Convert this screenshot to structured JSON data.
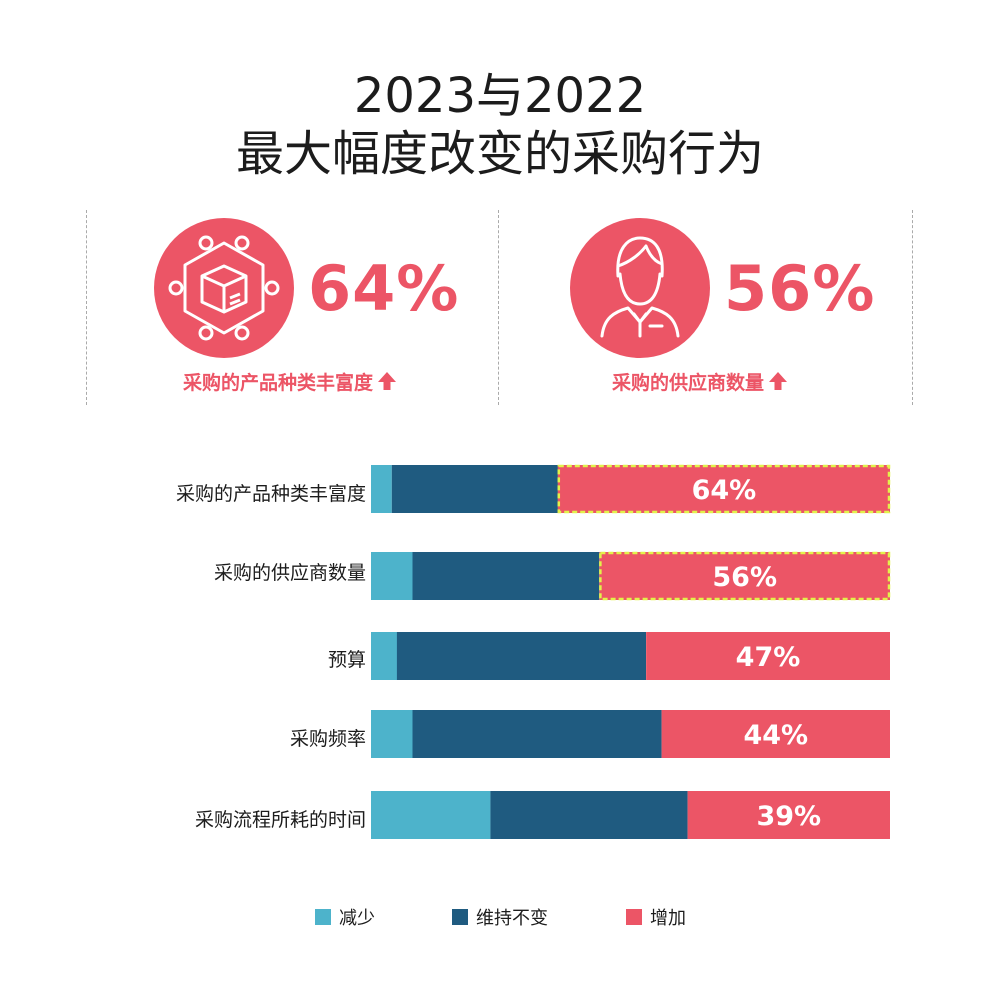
{
  "header": {
    "title_line1": "2023与2022",
    "title_line2": "最大幅度改变的采购行为"
  },
  "highlights": [
    {
      "icon": "product-network-icon",
      "value": "64%",
      "caption": "采购的产品种类丰富度"
    },
    {
      "icon": "supplier-person-icon",
      "value": "56%",
      "caption": "采购的供应商数量"
    }
  ],
  "colors": {
    "decrease": "#4db3cb",
    "unchanged": "#1f5b80",
    "increase": "#ec5566",
    "highlight_border": "#e2f24a"
  },
  "chart_data": {
    "type": "bar",
    "orientation": "horizontal",
    "stacked": true,
    "title": "2023与2022 最大幅度改变的采购行为",
    "categories": [
      "采购的产品种类丰富度",
      "采购的供应商数量",
      "预算",
      "采购频率",
      "采购流程所耗的时间"
    ],
    "series": [
      {
        "name": "减少",
        "values": [
          4,
          8,
          5,
          8,
          23
        ]
      },
      {
        "name": "维持不变",
        "values": [
          32,
          36,
          48,
          48,
          38
        ]
      },
      {
        "name": "增加",
        "values": [
          64,
          56,
          47,
          44,
          39
        ]
      }
    ],
    "data_labels": [
      "64%",
      "56%",
      "47%",
      "44%",
      "39%"
    ],
    "highlighted": [
      "采购的产品种类丰富度",
      "采购的供应商数量"
    ],
    "xlim": [
      0,
      100
    ],
    "legend": [
      "减少",
      "维持不变",
      "增加"
    ],
    "legend_position": "bottom"
  }
}
